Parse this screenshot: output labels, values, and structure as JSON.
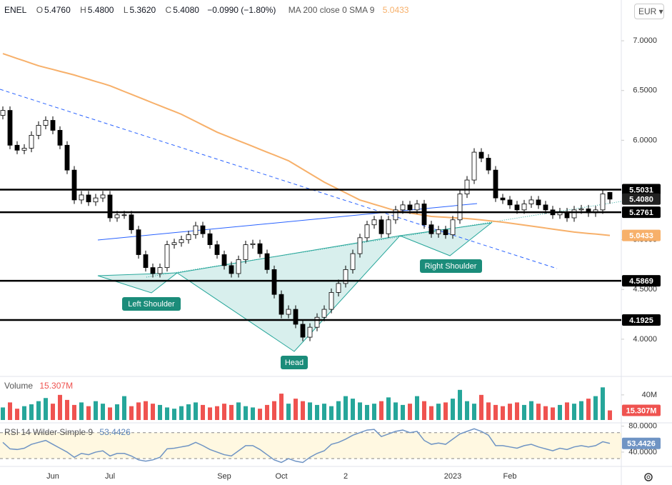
{
  "header": {
    "symbol": "ENEL",
    "items": [
      {
        "key": "O",
        "value": "5.4760"
      },
      {
        "key": "H",
        "value": "5.4800"
      },
      {
        "key": "L",
        "value": "5.3620"
      },
      {
        "key": "C",
        "value": "5.4080"
      }
    ],
    "change": "−0.0990 (−1.80%)",
    "currency": "EUR"
  },
  "chart_data": {
    "type": "candlestick",
    "categories": [
      null,
      null,
      null,
      null,
      null,
      null,
      null,
      "Jun",
      null,
      null,
      null,
      null,
      null,
      null,
      null,
      "Jul",
      null,
      null,
      null,
      null,
      null,
      null,
      null,
      null,
      null,
      null,
      null,
      null,
      null,
      null,
      null,
      "Sep",
      null,
      null,
      null,
      null,
      null,
      null,
      null,
      "Oct",
      null,
      null,
      null,
      null,
      null,
      null,
      null,
      null,
      "2",
      null,
      null,
      null,
      null,
      null,
      null,
      null,
      null,
      null,
      null,
      null,
      null,
      null,
      null,
      "2023",
      null,
      null,
      null,
      null,
      null,
      null,
      null,
      "Feb",
      null,
      null,
      null,
      null,
      null,
      null,
      null,
      null,
      null,
      null,
      null,
      null,
      null,
      null
    ],
    "open": [
      6.25,
      6.3,
      5.95,
      5.9,
      5.92,
      6.05,
      6.15,
      6.2,
      6.1,
      5.95,
      5.7,
      5.4,
      5.45,
      5.38,
      5.42,
      5.45,
      5.22,
      5.25,
      5.25,
      5.1,
      4.85,
      4.72,
      4.66,
      4.72,
      4.95,
      4.97,
      5.0,
      5.05,
      5.14,
      5.06,
      4.95,
      4.85,
      4.74,
      4.66,
      4.8,
      4.95,
      4.96,
      4.86,
      4.7,
      4.45,
      4.25,
      4.3,
      4.15,
      4.02,
      4.12,
      4.22,
      4.3,
      4.47,
      4.56,
      4.7,
      4.86,
      5.02,
      5.15,
      5.2,
      5.06,
      5.2,
      5.3,
      5.35,
      5.3,
      5.36,
      5.15,
      5.06,
      5.1,
      5.05,
      5.2,
      5.46,
      5.6,
      5.88,
      5.82,
      5.7,
      5.42,
      5.4,
      5.35,
      5.3,
      5.36,
      5.4,
      5.35,
      5.3,
      5.25,
      5.28,
      5.22,
      5.3,
      5.31,
      5.27,
      5.3,
      5.476
    ],
    "high": [
      6.34,
      6.34,
      5.99,
      5.96,
      6.09,
      6.19,
      6.24,
      6.24,
      6.14,
      5.99,
      5.74,
      5.49,
      5.49,
      5.46,
      5.49,
      5.49,
      5.29,
      5.29,
      5.29,
      5.14,
      4.89,
      4.76,
      4.76,
      4.99,
      5.01,
      5.04,
      5.09,
      5.18,
      5.18,
      5.1,
      4.99,
      4.89,
      4.78,
      4.84,
      4.99,
      5.0,
      5.0,
      4.9,
      4.74,
      4.49,
      4.34,
      4.34,
      4.19,
      4.16,
      4.26,
      4.34,
      4.51,
      4.6,
      4.74,
      4.9,
      5.06,
      5.19,
      5.24,
      5.24,
      5.24,
      5.34,
      5.39,
      5.39,
      5.4,
      5.4,
      5.19,
      5.14,
      5.14,
      5.24,
      5.5,
      5.64,
      5.92,
      5.92,
      5.86,
      5.74,
      5.46,
      5.44,
      5.39,
      5.4,
      5.44,
      5.44,
      5.39,
      5.34,
      5.32,
      5.32,
      5.34,
      5.35,
      5.35,
      5.34,
      5.5,
      5.48
    ],
    "low": [
      6.21,
      5.91,
      5.86,
      5.86,
      5.88,
      6.01,
      6.11,
      6.06,
      5.91,
      5.66,
      5.36,
      5.36,
      5.34,
      5.34,
      5.38,
      5.18,
      5.18,
      5.21,
      5.06,
      4.81,
      4.68,
      4.62,
      4.62,
      4.68,
      4.91,
      4.93,
      4.96,
      5.01,
      5.02,
      4.91,
      4.81,
      4.7,
      4.62,
      4.62,
      4.76,
      4.91,
      4.82,
      4.66,
      4.41,
      4.21,
      4.21,
      4.11,
      3.98,
      3.98,
      4.08,
      4.18,
      4.26,
      4.43,
      4.52,
      4.66,
      4.82,
      4.98,
      5.11,
      5.02,
      5.02,
      5.16,
      5.26,
      5.26,
      5.26,
      5.11,
      5.02,
      5.02,
      5.01,
      5.01,
      5.16,
      5.42,
      5.56,
      5.78,
      5.66,
      5.38,
      5.36,
      5.31,
      5.26,
      5.26,
      5.32,
      5.31,
      5.26,
      5.21,
      5.21,
      5.18,
      5.18,
      5.26,
      5.23,
      5.23,
      5.26,
      5.362
    ],
    "close": [
      6.3,
      5.95,
      5.9,
      5.92,
      6.05,
      6.15,
      6.2,
      6.1,
      5.95,
      5.7,
      5.4,
      5.45,
      5.38,
      5.42,
      5.45,
      5.22,
      5.25,
      5.25,
      5.1,
      4.85,
      4.72,
      4.66,
      4.72,
      4.95,
      4.97,
      5.0,
      5.05,
      5.14,
      5.06,
      4.95,
      4.85,
      4.74,
      4.66,
      4.8,
      4.95,
      4.96,
      4.86,
      4.7,
      4.45,
      4.25,
      4.3,
      4.15,
      4.02,
      4.12,
      4.22,
      4.3,
      4.47,
      4.56,
      4.7,
      4.86,
      5.02,
      5.15,
      5.2,
      5.06,
      5.2,
      5.3,
      5.35,
      5.3,
      5.36,
      5.15,
      5.06,
      5.1,
      5.05,
      5.2,
      5.46,
      5.6,
      5.88,
      5.82,
      5.7,
      5.42,
      5.4,
      5.35,
      5.3,
      5.36,
      5.4,
      5.35,
      5.3,
      5.25,
      5.28,
      5.22,
      5.3,
      5.31,
      5.27,
      5.3,
      5.46,
      5.408
    ],
    "last_price": {
      "value": 5.408,
      "label": "5.4080"
    },
    "ma": {
      "name": "MA 200 close 0 SMA 9",
      "color": "#f7b06a",
      "last": 5.0433,
      "values": [
        6.871,
        6.847,
        6.822,
        6.798,
        6.773,
        6.749,
        6.73,
        6.712,
        6.693,
        6.675,
        6.656,
        6.634,
        6.613,
        6.591,
        6.57,
        6.548,
        6.519,
        6.49,
        6.462,
        6.433,
        6.404,
        6.375,
        6.347,
        6.318,
        6.29,
        6.261,
        6.225,
        6.189,
        6.153,
        6.117,
        6.081,
        6.052,
        6.024,
        5.995,
        5.967,
        5.938,
        5.909,
        5.88,
        5.852,
        5.823,
        5.794,
        5.751,
        5.708,
        5.665,
        5.622,
        5.579,
        5.543,
        5.507,
        5.471,
        5.435,
        5.399,
        5.378,
        5.356,
        5.335,
        5.313,
        5.292,
        5.28,
        5.269,
        5.257,
        5.246,
        5.234,
        5.23,
        5.226,
        5.221,
        5.217,
        5.213,
        5.206,
        5.199,
        5.191,
        5.184,
        5.177,
        5.167,
        5.157,
        5.147,
        5.137,
        5.127,
        5.117,
        5.107,
        5.097,
        5.087,
        5.077,
        5.07,
        5.063,
        5.057,
        5.05,
        5.043
      ]
    },
    "levels": [
      5.5031,
      5.2761,
      4.5869,
      4.1925
    ],
    "ylim": [
      3.64,
      7.41
    ],
    "yticks": [
      {
        "value": 4,
        "label": "4.0000"
      },
      {
        "value": 4.5,
        "label": "4.5000"
      },
      {
        "value": 5,
        "label": "5.0000"
      },
      {
        "value": 5.5,
        "label": "5.5000"
      },
      {
        "value": 6,
        "label": "6.0000"
      },
      {
        "value": 6.5,
        "label": "6.5000"
      },
      {
        "value": 7,
        "label": "7.0000"
      }
    ],
    "annotations": [
      "Left Shoulder",
      "Head",
      "Right Shoulder"
    ],
    "volume": {
      "name": "Volume",
      "last": {
        "value": 15.307,
        "label": "15.307M"
      },
      "ylim": [
        0,
        66
      ],
      "yticks": [
        {
          "value": 40,
          "label": "40M"
        }
      ],
      "values": [
        20,
        28,
        18,
        22,
        25,
        30,
        35,
        26,
        40,
        32,
        24,
        28,
        22,
        30,
        26,
        20,
        25,
        38,
        22,
        28,
        30,
        26,
        24,
        20,
        18,
        22,
        25,
        28,
        24,
        20,
        22,
        26,
        24,
        28,
        22,
        20,
        18,
        24,
        30,
        42,
        26,
        34,
        30,
        28,
        24,
        26,
        22,
        30,
        38,
        34,
        28,
        24,
        26,
        30,
        36,
        28,
        24,
        26,
        38,
        30,
        22,
        26,
        28,
        34,
        48,
        30,
        26,
        40,
        28,
        24,
        22,
        26,
        28,
        24,
        30,
        26,
        22,
        20,
        24,
        28,
        26,
        30,
        34,
        38,
        52,
        15.307
      ]
    },
    "rsi": {
      "name": "RSI 14 Wilder Simple 9",
      "color": "#6f94c4",
      "last": 53.4426,
      "ylim": [
        19,
        84
      ],
      "bands": [
        70,
        30
      ],
      "yticks": [
        {
          "value": 40,
          "label": "40.0000"
        },
        {
          "value": 80,
          "label": "80.0000"
        }
      ],
      "values": [
        55,
        45,
        44,
        46,
        52,
        55,
        58,
        52,
        46,
        40,
        32,
        38,
        36,
        40,
        42,
        34,
        38,
        38,
        34,
        28,
        26,
        28,
        32,
        45,
        46,
        48,
        50,
        55,
        50,
        44,
        40,
        36,
        34,
        42,
        50,
        50,
        44,
        36,
        28,
        24,
        30,
        26,
        24,
        32,
        38,
        42,
        52,
        55,
        60,
        66,
        70,
        74,
        75,
        64,
        68,
        72,
        74,
        70,
        72,
        58,
        52,
        54,
        52,
        60,
        68,
        72,
        76,
        72,
        66,
        50,
        50,
        48,
        46,
        50,
        52,
        48,
        45,
        42,
        46,
        44,
        48,
        50,
        48,
        50,
        56,
        53.4426
      ]
    }
  }
}
